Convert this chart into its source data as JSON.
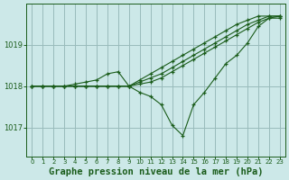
{
  "background_color": "#cce8e8",
  "grid_color": "#99bbbb",
  "line_color": "#1a5c1a",
  "xlabel": "Graphe pression niveau de la mer (hPa)",
  "xlabel_fontsize": 7.5,
  "yticks": [
    1017,
    1018,
    1019
  ],
  "ylim": [
    1016.3,
    1020.0
  ],
  "xlim": [
    -0.5,
    23.5
  ],
  "xticks": [
    0,
    1,
    2,
    3,
    4,
    5,
    6,
    7,
    8,
    9,
    10,
    11,
    12,
    13,
    14,
    15,
    16,
    17,
    18,
    19,
    20,
    21,
    22,
    23
  ],
  "series": [
    [
      1018.0,
      1018.0,
      1018.0,
      1018.0,
      1018.05,
      1018.1,
      1018.15,
      1018.3,
      1018.35,
      1018.0,
      1017.85,
      1017.75,
      1017.55,
      1017.05,
      1016.8,
      1017.55,
      1017.85,
      1018.2,
      1018.55,
      1018.75,
      1019.05,
      1019.45,
      1019.65,
      1019.65
    ],
    [
      1018.0,
      1018.0,
      1018.0,
      1018.0,
      1018.0,
      1018.0,
      1018.0,
      1018.0,
      1018.0,
      1018.0,
      1018.05,
      1018.1,
      1018.2,
      1018.35,
      1018.5,
      1018.65,
      1018.8,
      1018.95,
      1019.1,
      1019.25,
      1019.4,
      1019.55,
      1019.65,
      1019.7
    ],
    [
      1018.0,
      1018.0,
      1018.0,
      1018.0,
      1018.0,
      1018.0,
      1018.0,
      1018.0,
      1018.0,
      1018.0,
      1018.1,
      1018.2,
      1018.3,
      1018.45,
      1018.6,
      1018.75,
      1018.9,
      1019.05,
      1019.2,
      1019.35,
      1019.5,
      1019.6,
      1019.7,
      1019.7
    ],
    [
      1018.0,
      1018.0,
      1018.0,
      1018.0,
      1018.0,
      1018.0,
      1018.0,
      1018.0,
      1018.0,
      1018.0,
      1018.15,
      1018.3,
      1018.45,
      1018.6,
      1018.75,
      1018.9,
      1019.05,
      1019.2,
      1019.35,
      1019.5,
      1019.6,
      1019.7,
      1019.7,
      1019.7
    ]
  ]
}
